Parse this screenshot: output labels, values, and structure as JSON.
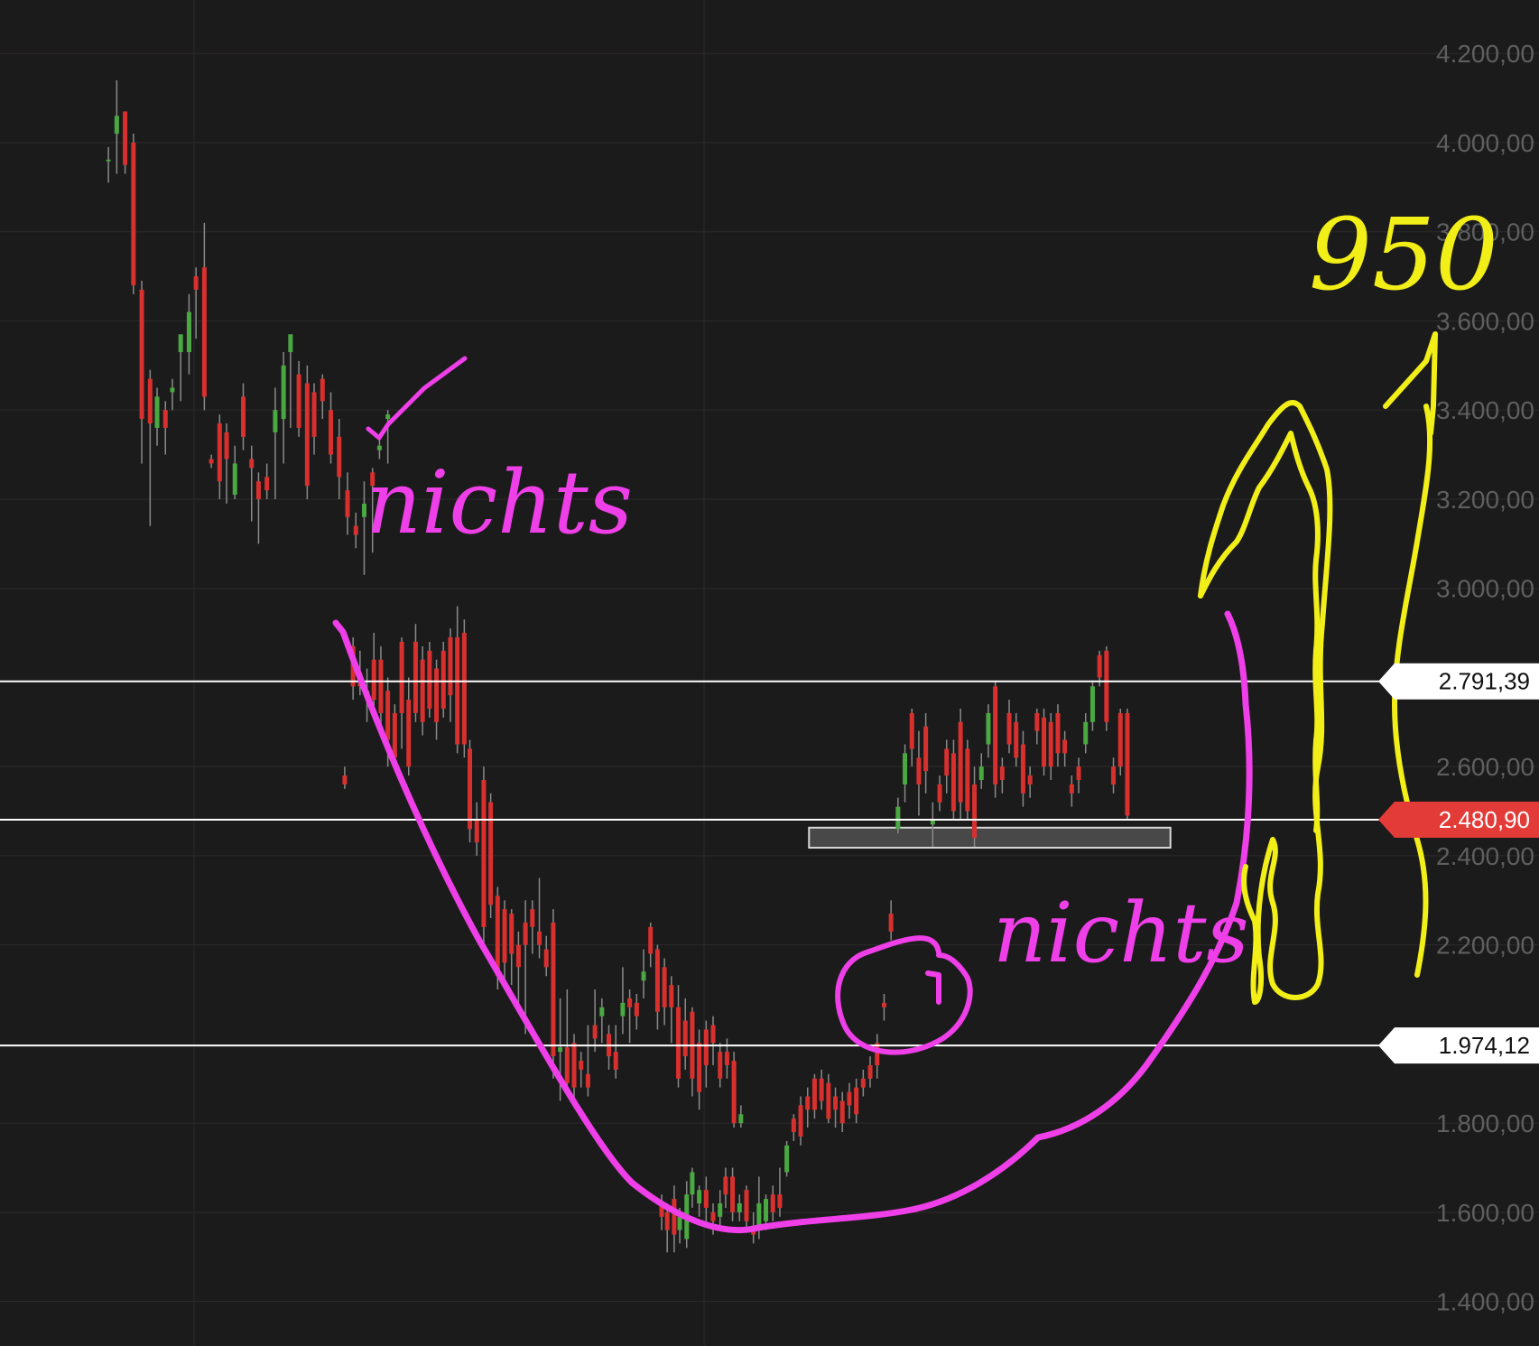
{
  "chart_data": {
    "type": "candlestick",
    "ylim": [
      1300,
      4320
    ],
    "y_ticks": [
      {
        "value": 4200,
        "label": "4.200,00"
      },
      {
        "value": 4000,
        "label": "4.000,00"
      },
      {
        "value": 3800,
        "label": "3.800,00"
      },
      {
        "value": 3600,
        "label": "3.600,00"
      },
      {
        "value": 3400,
        "label": "3.400,00"
      },
      {
        "value": 3200,
        "label": "3.200,00"
      },
      {
        "value": 3000,
        "label": "3.000,00"
      },
      {
        "value": 2600,
        "label": "2.600,00"
      },
      {
        "value": 2400,
        "label": "2.400,00"
      },
      {
        "value": 2200,
        "label": "2.200,00"
      },
      {
        "value": 1800,
        "label": "1.800,00"
      },
      {
        "value": 1600,
        "label": "1.600,00"
      },
      {
        "value": 1400,
        "label": "1.400,00"
      }
    ],
    "horizontal_lines": [
      {
        "value": 2791.39,
        "label": "2.791,39",
        "style": "white"
      },
      {
        "value": 2480.9,
        "label": "2.480,90",
        "style": "red"
      },
      {
        "value": 1974.12,
        "label": "1.974,12",
        "style": "white"
      }
    ],
    "support_zone": {
      "from": 2418,
      "to": 2463,
      "x_start": 0.582,
      "x_end": 0.842
    },
    "candles": [
      [
        0.078,
        3960,
        3962,
        3910,
        3990
      ],
      [
        0.084,
        4020,
        4060,
        3930,
        4140
      ],
      [
        0.09,
        4070,
        3950,
        3930,
        4070
      ],
      [
        0.096,
        4000,
        3680,
        3660,
        4020
      ],
      [
        0.102,
        3670,
        3380,
        3280,
        3690
      ],
      [
        0.108,
        3470,
        3370,
        3140,
        3490
      ],
      [
        0.113,
        3360,
        3430,
        3320,
        3450
      ],
      [
        0.119,
        3400,
        3360,
        3300,
        3420
      ],
      [
        0.124,
        3440,
        3450,
        3400,
        3470
      ],
      [
        0.13,
        3530,
        3570,
        3420,
        3550
      ],
      [
        0.136,
        3530,
        3620,
        3480,
        3660
      ],
      [
        0.141,
        3700,
        3670,
        3560,
        3720
      ],
      [
        0.147,
        3720,
        3430,
        3400,
        3820
      ],
      [
        0.152,
        3290,
        3280,
        3270,
        3300
      ],
      [
        0.158,
        3370,
        3240,
        3200,
        3390
      ],
      [
        0.163,
        3350,
        3290,
        3190,
        3370
      ],
      [
        0.169,
        3210,
        3280,
        3200,
        3320
      ],
      [
        0.175,
        3430,
        3340,
        3310,
        3460
      ],
      [
        0.181,
        3290,
        3270,
        3150,
        3320
      ],
      [
        0.186,
        3240,
        3200,
        3100,
        3260
      ],
      [
        0.192,
        3250,
        3220,
        3200,
        3280
      ],
      [
        0.198,
        3350,
        3400,
        3200,
        3450
      ],
      [
        0.204,
        3380,
        3500,
        3280,
        3530
      ],
      [
        0.209,
        3530,
        3570,
        3360,
        3560
      ],
      [
        0.215,
        3480,
        3360,
        3340,
        3510
      ],
      [
        0.221,
        3460,
        3230,
        3200,
        3500
      ],
      [
        0.226,
        3440,
        3340,
        3300,
        3460
      ],
      [
        0.232,
        3470,
        3420,
        3380,
        3480
      ],
      [
        0.238,
        3400,
        3300,
        3280,
        3440
      ],
      [
        0.244,
        3340,
        3250,
        3200,
        3380
      ],
      [
        0.25,
        3220,
        3160,
        3120,
        3260
      ],
      [
        0.256,
        3140,
        3120,
        3090,
        3170
      ],
      [
        0.262,
        3160,
        3190,
        3030,
        3240
      ],
      [
        0.268,
        3260,
        3230,
        3080,
        3270
      ],
      [
        0.273,
        3310,
        3320,
        3290,
        3340
      ],
      [
        0.279,
        3380,
        3390,
        3280,
        3400
      ],
      [
        0.248,
        2580,
        2560,
        2550,
        2600
      ],
      [
        0.254,
        2870,
        2780,
        2750,
        2890
      ],
      [
        0.259,
        2810,
        2780,
        2760,
        2860
      ],
      [
        0.264,
        2760,
        2770,
        2700,
        2820
      ],
      [
        0.269,
        2840,
        2750,
        2710,
        2900
      ],
      [
        0.274,
        2840,
        2720,
        2690,
        2870
      ],
      [
        0.279,
        2770,
        2660,
        2600,
        2800
      ],
      [
        0.284,
        2720,
        2620,
        2600,
        2740
      ],
      [
        0.289,
        2880,
        2720,
        2640,
        2890
      ],
      [
        0.294,
        2750,
        2600,
        2580,
        2800
      ],
      [
        0.299,
        2880,
        2720,
        2700,
        2920
      ],
      [
        0.304,
        2840,
        2700,
        2670,
        2870
      ],
      [
        0.309,
        2860,
        2730,
        2710,
        2880
      ],
      [
        0.314,
        2820,
        2700,
        2660,
        2840
      ],
      [
        0.319,
        2860,
        2730,
        2710,
        2880
      ],
      [
        0.324,
        2890,
        2760,
        2700,
        2910
      ],
      [
        0.329,
        2890,
        2650,
        2630,
        2960
      ],
      [
        0.334,
        2900,
        2650,
        2620,
        2930
      ],
      [
        0.338,
        2640,
        2460,
        2430,
        2660
      ],
      [
        0.343,
        2480,
        2430,
        2400,
        2520
      ],
      [
        0.348,
        2570,
        2240,
        2200,
        2600
      ],
      [
        0.353,
        2520,
        2290,
        2260,
        2540
      ],
      [
        0.358,
        2310,
        2130,
        2100,
        2330
      ],
      [
        0.363,
        2280,
        2160,
        2120,
        2300
      ],
      [
        0.368,
        2270,
        2180,
        2110,
        2280
      ],
      [
        0.373,
        2200,
        2150,
        2060,
        2230
      ],
      [
        0.378,
        2250,
        2200,
        2000,
        2300
      ],
      [
        0.383,
        2280,
        2240,
        2180,
        2300
      ],
      [
        0.388,
        2230,
        2200,
        2170,
        2350
      ],
      [
        0.393,
        2190,
        2150,
        2130,
        2220
      ],
      [
        0.398,
        2250,
        1950,
        1900,
        2280
      ],
      [
        0.403,
        1960,
        1970,
        1850,
        2080
      ],
      [
        0.408,
        1970,
        1890,
        1860,
        2100
      ],
      [
        0.413,
        1980,
        1880,
        1850,
        2000
      ],
      [
        0.418,
        1940,
        1920,
        1880,
        1960
      ],
      [
        0.423,
        1910,
        1880,
        1860,
        2020
      ],
      [
        0.428,
        2020,
        1990,
        1960,
        2100
      ],
      [
        0.433,
        2040,
        2060,
        1980,
        2080
      ],
      [
        0.438,
        2000,
        1950,
        1920,
        2020
      ],
      [
        0.443,
        1960,
        1920,
        1900,
        2020
      ],
      [
        0.448,
        2040,
        2070,
        2000,
        2150
      ],
      [
        0.453,
        2080,
        2060,
        1980,
        2100
      ],
      [
        0.458,
        2070,
        2040,
        2010,
        2090
      ],
      [
        0.463,
        2120,
        2140,
        2080,
        2190
      ],
      [
        0.468,
        2240,
        2180,
        2150,
        2250
      ],
      [
        0.473,
        2190,
        2050,
        2010,
        2200
      ],
      [
        0.478,
        2150,
        2060,
        2020,
        2170
      ],
      [
        0.483,
        2110,
        2060,
        1980,
        2130
      ],
      [
        0.488,
        2060,
        1900,
        1880,
        2110
      ],
      [
        0.493,
        2030,
        1950,
        1920,
        2080
      ],
      [
        0.498,
        2050,
        1900,
        1860,
        2060
      ],
      [
        0.503,
        1980,
        1870,
        1830,
        2010
      ],
      [
        0.508,
        2010,
        1930,
        1880,
        2030
      ],
      [
        0.513,
        2020,
        1980,
        1930,
        2040
      ],
      [
        0.518,
        1960,
        1900,
        1880,
        1980
      ],
      [
        0.523,
        1960,
        1930,
        1900,
        1990
      ],
      [
        0.528,
        1940,
        1800,
        1790,
        1960
      ],
      [
        0.533,
        1800,
        1820,
        1790,
        1840
      ],
      [
        0.476,
        1620,
        1590,
        1560,
        1640
      ],
      [
        0.48,
        1600,
        1560,
        1510,
        1620
      ],
      [
        0.485,
        1630,
        1550,
        1510,
        1660
      ],
      [
        0.489,
        1560,
        1590,
        1530,
        1610
      ],
      [
        0.494,
        1540,
        1640,
        1520,
        1670
      ],
      [
        0.498,
        1640,
        1690,
        1610,
        1700
      ],
      [
        0.503,
        1620,
        1650,
        1590,
        1660
      ],
      [
        0.508,
        1650,
        1610,
        1580,
        1680
      ],
      [
        0.513,
        1600,
        1580,
        1550,
        1620
      ],
      [
        0.518,
        1590,
        1620,
        1570,
        1650
      ],
      [
        0.522,
        1680,
        1640,
        1610,
        1700
      ],
      [
        0.527,
        1680,
        1600,
        1580,
        1700
      ],
      [
        0.532,
        1600,
        1620,
        1580,
        1640
      ],
      [
        0.537,
        1650,
        1580,
        1560,
        1660
      ],
      [
        0.542,
        1570,
        1550,
        1530,
        1600
      ],
      [
        0.546,
        1560,
        1620,
        1540,
        1680
      ],
      [
        0.551,
        1580,
        1630,
        1560,
        1640
      ],
      [
        0.556,
        1640,
        1600,
        1580,
        1660
      ],
      [
        0.561,
        1640,
        1610,
        1590,
        1700
      ],
      [
        0.566,
        1690,
        1750,
        1680,
        1760
      ],
      [
        0.571,
        1810,
        1780,
        1760,
        1820
      ],
      [
        0.576,
        1840,
        1770,
        1750,
        1860
      ],
      [
        0.581,
        1860,
        1830,
        1790,
        1880
      ],
      [
        0.586,
        1900,
        1830,
        1810,
        1910
      ],
      [
        0.591,
        1900,
        1850,
        1830,
        1920
      ],
      [
        0.596,
        1890,
        1810,
        1800,
        1910
      ],
      [
        0.601,
        1860,
        1830,
        1790,
        1880
      ],
      [
        0.606,
        1850,
        1800,
        1780,
        1870
      ],
      [
        0.611,
        1870,
        1840,
        1810,
        1890
      ],
      [
        0.616,
        1880,
        1820,
        1800,
        1900
      ],
      [
        0.621,
        1900,
        1880,
        1860,
        1920
      ],
      [
        0.626,
        1930,
        1900,
        1880,
        1950
      ],
      [
        0.631,
        1980,
        1930,
        1900,
        2000
      ],
      [
        0.636,
        2070,
        2060,
        2030,
        2090
      ],
      [
        0.641,
        2270,
        2230,
        2210,
        2300
      ],
      [
        0.646,
        2460,
        2510,
        2450,
        2530
      ],
      [
        0.651,
        2560,
        2630,
        2520,
        2650
      ],
      [
        0.656,
        2720,
        2640,
        2600,
        2730
      ],
      [
        0.661,
        2620,
        2560,
        2490,
        2680
      ],
      [
        0.666,
        2690,
        2590,
        2540,
        2720
      ],
      [
        0.671,
        2470,
        2480,
        2420,
        2520
      ],
      [
        0.676,
        2560,
        2520,
        2500,
        2580
      ],
      [
        0.681,
        2640,
        2580,
        2540,
        2660
      ],
      [
        0.686,
        2630,
        2500,
        2480,
        2660
      ],
      [
        0.691,
        2700,
        2520,
        2480,
        2730
      ],
      [
        0.696,
        2640,
        2500,
        2480,
        2660
      ],
      [
        0.701,
        2560,
        2440,
        2420,
        2600
      ],
      [
        0.706,
        2570,
        2600,
        2550,
        2630
      ],
      [
        0.711,
        2650,
        2720,
        2620,
        2740
      ],
      [
        0.716,
        2780,
        2560,
        2530,
        2790
      ],
      [
        0.721,
        2600,
        2570,
        2540,
        2620
      ],
      [
        0.726,
        2720,
        2650,
        2630,
        2750
      ],
      [
        0.731,
        2700,
        2620,
        2600,
        2720
      ],
      [
        0.736,
        2650,
        2540,
        2510,
        2680
      ],
      [
        0.741,
        2580,
        2560,
        2530,
        2600
      ],
      [
        0.746,
        2720,
        2680,
        2650,
        2730
      ],
      [
        0.751,
        2710,
        2600,
        2580,
        2730
      ],
      [
        0.756,
        2700,
        2600,
        2570,
        2720
      ],
      [
        0.761,
        2720,
        2630,
        2600,
        2740
      ],
      [
        0.766,
        2660,
        2630,
        2600,
        2680
      ],
      [
        0.771,
        2560,
        2540,
        2510,
        2580
      ],
      [
        0.776,
        2600,
        2570,
        2540,
        2620
      ],
      [
        0.781,
        2650,
        2700,
        2630,
        2720
      ],
      [
        0.786,
        2700,
        2780,
        2680,
        2790
      ],
      [
        0.791,
        2850,
        2800,
        2780,
        2860
      ],
      [
        0.796,
        2860,
        2700,
        2680,
        2870
      ],
      [
        0.801,
        2600,
        2560,
        2540,
        2620
      ],
      [
        0.806,
        2720,
        2600,
        2580,
        2730
      ],
      [
        0.811,
        2720,
        2490,
        2480,
        2730
      ]
    ]
  },
  "annotations": {
    "pink_text_top": "nichts",
    "pink_text_bottom": "nichts",
    "yellow_target": "950"
  },
  "colors": {
    "background": "#1c1b1b",
    "up_candle": "#4aa842",
    "down_candle": "#d8302e",
    "wick": "#8a8a8a",
    "grid": "#2c2b2b",
    "tick_text": "#5f5f5f",
    "pink_marker": "#ee3fe8",
    "yellow_marker": "#f2ee18",
    "price_badge_red": "#e33b37"
  }
}
